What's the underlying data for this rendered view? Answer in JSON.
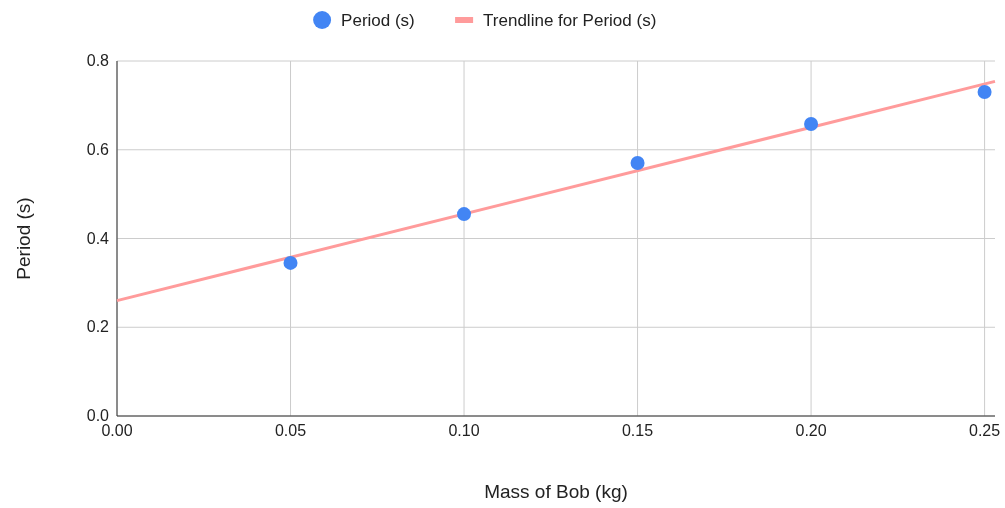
{
  "chart_data": {
    "type": "scatter",
    "xlabel": "Mass of Bob (kg)",
    "ylabel": "Period (s)",
    "x": [
      0.05,
      0.1,
      0.15,
      0.2,
      0.25
    ],
    "series": [
      {
        "name": "Period (s)",
        "color": "#4285f4",
        "values": [
          0.345,
          0.455,
          0.57,
          0.658,
          0.73
        ],
        "marker": "circle"
      },
      {
        "name": "Trendline for Period (s)",
        "type": "line",
        "color": "#ff9b9b",
        "x": [
          0,
          0.253
        ],
        "values": [
          0.26,
          0.754
        ],
        "marker": "none"
      }
    ],
    "xlim": [
      0,
      0.253
    ],
    "xticks": [
      {
        "value": 0,
        "label": "0.00"
      },
      {
        "value": 0.05,
        "label": "0.05"
      },
      {
        "value": 0.1,
        "label": "0.10"
      },
      {
        "value": 0.15,
        "label": "0.15"
      },
      {
        "value": 0.2,
        "label": "0.20"
      },
      {
        "value": 0.25,
        "label": "0.25"
      }
    ],
    "ylim": [
      0,
      0.8
    ],
    "yticks": [
      {
        "value": 0,
        "label": "0.0"
      },
      {
        "value": 0.2,
        "label": "0.2"
      },
      {
        "value": 0.4,
        "label": "0.4"
      },
      {
        "value": 0.6,
        "label": "0.6"
      },
      {
        "value": 0.8,
        "label": "0.8"
      }
    ],
    "grid": true,
    "legend": "top"
  }
}
